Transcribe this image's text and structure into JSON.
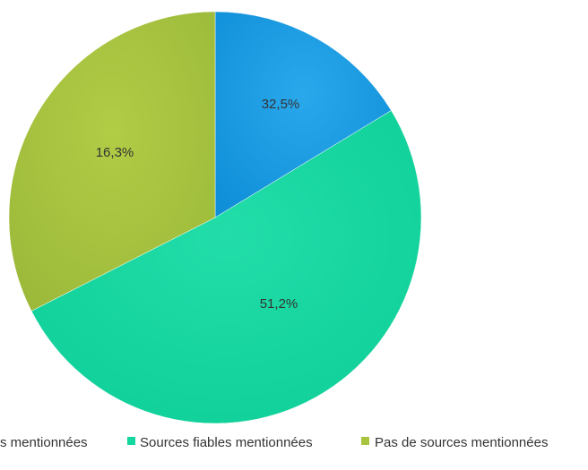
{
  "chart_data": {
    "type": "pie",
    "slices": [
      {
        "label": "… mentionnées",
        "value": 16.3,
        "display": "16,3%",
        "color": "#1a9be0"
      },
      {
        "label": "Sources fiables mentionnées",
        "value": 51.2,
        "display": "51,2%",
        "color": "#13d6a0"
      },
      {
        "label": "Pas de sources mentionnées",
        "value": 32.5,
        "display": "32,5%",
        "color": "#a7c43d"
      }
    ],
    "data_labels": [
      "32,5%",
      "51,2%",
      "16,3%"
    ],
    "legend": {
      "placement": "bottom",
      "entries": [
        "s mentionnées",
        "Sources fiables mentionnées",
        "Pas de sources mentionnées"
      ]
    }
  }
}
